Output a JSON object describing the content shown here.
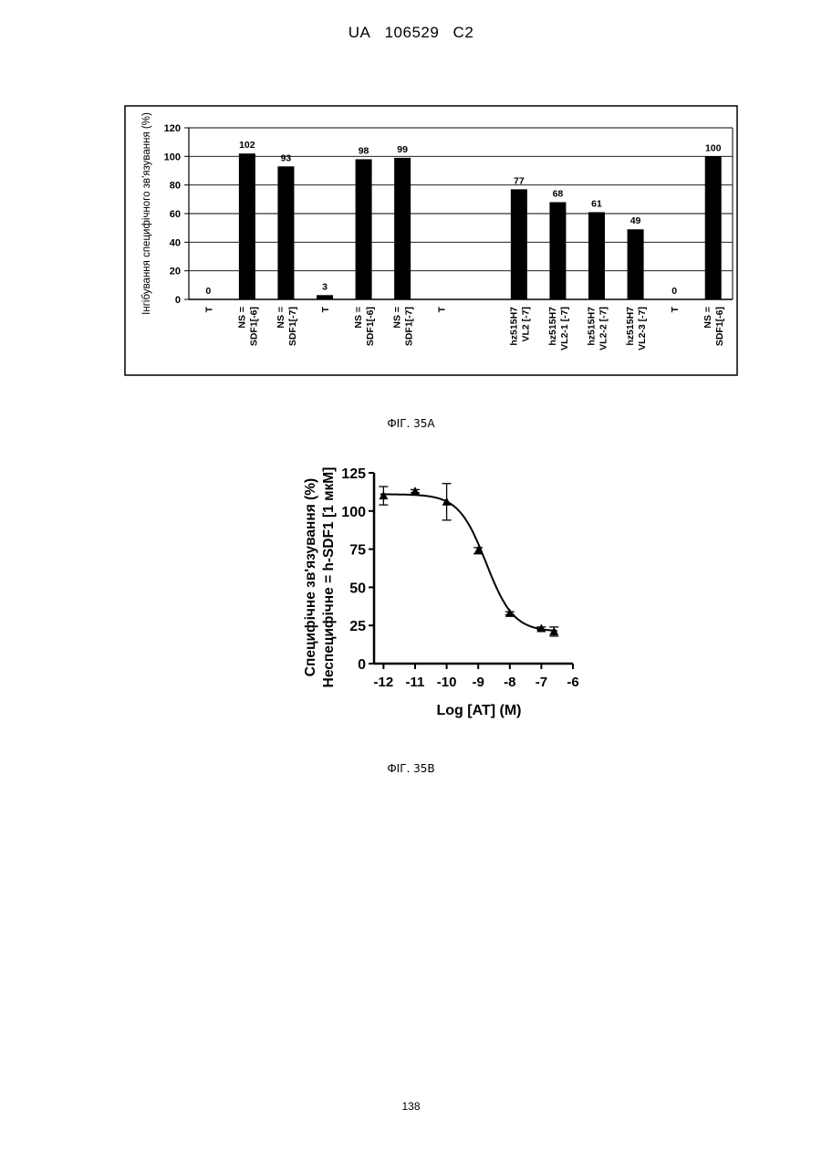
{
  "header": {
    "office": "UA",
    "number": "106529",
    "kind": "C2"
  },
  "figures": {
    "caption_a": "ФІГ. 35А",
    "caption_b": "ФІГ. 35В"
  },
  "page_number": "138",
  "chart_data": [
    {
      "type": "bar",
      "ylabel": "Інгібування специфічного зв'язування (%)",
      "ylim": [
        0,
        120
      ],
      "yticks": [
        0,
        20,
        40,
        60,
        80,
        100,
        120
      ],
      "grid": true,
      "legend": "none",
      "categories": [
        [
          "T"
        ],
        [
          "NS =",
          "SDF1[-6]"
        ],
        [
          "NS =",
          "SDF1[-7]"
        ],
        [
          "T"
        ],
        [
          "NS =",
          "SDF1[-6]"
        ],
        [
          "NS =",
          "SDF1[-7]"
        ],
        [
          "T"
        ],
        [],
        [
          "hz515H7",
          "VL2 [-7]"
        ],
        [
          "hz515H7",
          "VL2-1 [-7]"
        ],
        [
          "hz515H7",
          "VL2-2 [-7]"
        ],
        [
          "hz515H7",
          "VL2-3 [-7]"
        ],
        [
          "T"
        ],
        [
          "NS =",
          "SDF1[-6]"
        ]
      ],
      "values": [
        0,
        102,
        93,
        3,
        98,
        99,
        null,
        null,
        77,
        68,
        61,
        49,
        0,
        100
      ],
      "data_labels": [
        "0",
        "102",
        "93",
        "3",
        "98",
        "99",
        "",
        "",
        "77",
        "68",
        "61",
        "49",
        "0",
        "100"
      ]
    },
    {
      "type": "scatter",
      "xlabel": "Log [AT] (M)",
      "ylabel_lines": [
        "Специфічне зв'язування (%)",
        "Неспецифічне = h-SDF1 [1 мкМ]"
      ],
      "xlim": [
        -12.3,
        -6
      ],
      "ylim": [
        0,
        125
      ],
      "xticks": [
        -12,
        -11,
        -10,
        -9,
        -8,
        -7,
        -6
      ],
      "yticks": [
        0,
        25,
        50,
        75,
        100,
        125
      ],
      "x": [
        -12,
        -11,
        -10,
        -9,
        -8,
        -7,
        -6.6
      ],
      "y": [
        110,
        113,
        106,
        74,
        33,
        23,
        21
      ],
      "error": [
        6,
        1,
        12,
        2,
        1,
        1,
        3
      ],
      "fit": {
        "model": "sigmoid",
        "top": 111,
        "bottom": 21,
        "log_ic50": -8.75,
        "hill": -1
      },
      "grid": false,
      "legend": "none"
    }
  ]
}
